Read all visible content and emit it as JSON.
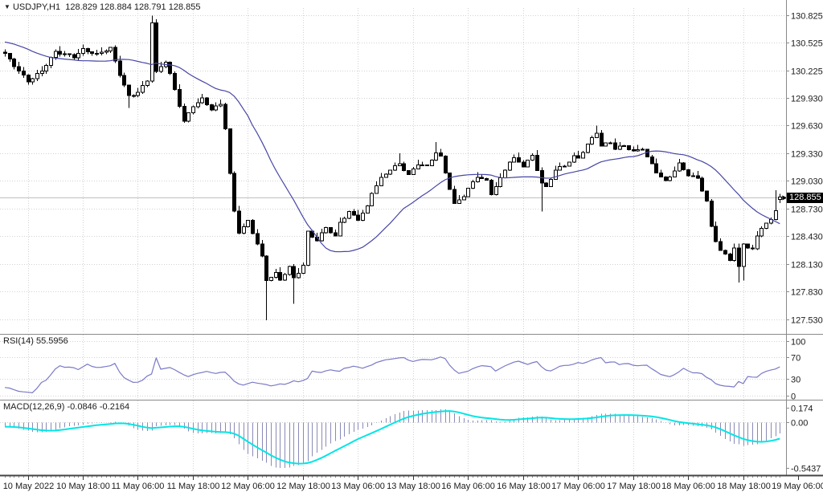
{
  "header": {
    "dropdown_icon": "▼",
    "symbol": "USDJPY,H1",
    "open": "128.829",
    "high": "128.884",
    "low": "128.791",
    "close": "128.855"
  },
  "panels": {
    "rsi": {
      "label": "RSI(14)",
      "value": "55.5956",
      "axis_labels": [
        "100",
        "70",
        "30",
        "0"
      ],
      "dotted_levels": [
        100,
        70,
        30,
        0
      ]
    },
    "macd": {
      "label": "MACD(12,26,9)",
      "value_main": "-0.0846",
      "value_signal": "-0.2164",
      "axis_labels": [
        "0.174",
        "0.00",
        "-0.5437"
      ]
    }
  },
  "price_axis": {
    "labels": [
      "130.825",
      "130.525",
      "130.225",
      "129.930",
      "129.630",
      "129.330",
      "129.030",
      "128.730",
      "128.430",
      "128.130",
      "127.830",
      "127.530"
    ],
    "current": "128.855"
  },
  "chart_data": {
    "type": "candlestick",
    "title": "USDJPY,H1",
    "timeframe_hours": 1,
    "candles_count": 170,
    "x_tick_labels": [
      "10 May 2022",
      "10 May 18:00",
      "11 May 06:00",
      "11 May 18:00",
      "12 May 06:00",
      "12 May 18:00",
      "13 May 06:00",
      "13 May 18:00",
      "16 May 06:00",
      "16 May 18:00",
      "17 May 06:00",
      "17 May 18:00",
      "18 May 06:00",
      "18 May 18:00",
      "19 May 06:00"
    ],
    "x_first_tick_candle": 5,
    "x_ticks_every_candles": 12,
    "y_range": [
      127.38,
      130.9
    ],
    "price_gridlines": [
      130.825,
      130.525,
      130.225,
      129.93,
      129.63,
      129.33,
      129.03,
      128.73,
      128.43,
      128.13,
      127.83,
      127.53
    ],
    "current_price": 128.855,
    "current_bar": {
      "open": 128.829,
      "high": 128.884,
      "low": 128.791,
      "close": 128.855
    },
    "price_anchors": [
      [
        0,
        130.4
      ],
      [
        2,
        130.28
      ],
      [
        5,
        130.12
      ],
      [
        8,
        130.22
      ],
      [
        11,
        130.42
      ],
      [
        15,
        130.38
      ],
      [
        17,
        130.46
      ],
      [
        20,
        130.4
      ],
      [
        23,
        130.46
      ],
      [
        25,
        130.18
      ],
      [
        27,
        129.95
      ],
      [
        29,
        130.0
      ],
      [
        31,
        130.12
      ],
      [
        32,
        130.75
      ],
      [
        33,
        130.2
      ],
      [
        35,
        130.32
      ],
      [
        36,
        130.18
      ],
      [
        38,
        129.85
      ],
      [
        39,
        129.68
      ],
      [
        41,
        129.85
      ],
      [
        43,
        129.92
      ],
      [
        45,
        129.8
      ],
      [
        47,
        129.85
      ],
      [
        48,
        129.6
      ],
      [
        49,
        129.1
      ],
      [
        50,
        128.7
      ],
      [
        51,
        128.48
      ],
      [
        53,
        128.6
      ],
      [
        55,
        128.35
      ],
      [
        56,
        128.2
      ],
      [
        57,
        127.95
      ],
      [
        59,
        128.02
      ],
      [
        60,
        127.95
      ],
      [
        62,
        128.1
      ],
      [
        63,
        127.98
      ],
      [
        65,
        128.12
      ],
      [
        66,
        128.48
      ],
      [
        68,
        128.38
      ],
      [
        70,
        128.52
      ],
      [
        72,
        128.42
      ],
      [
        73,
        128.58
      ],
      [
        75,
        128.7
      ],
      [
        77,
        128.62
      ],
      [
        79,
        128.75
      ],
      [
        80,
        128.9
      ],
      [
        82,
        129.05
      ],
      [
        84,
        129.15
      ],
      [
        86,
        129.22
      ],
      [
        88,
        129.1
      ],
      [
        90,
        129.22
      ],
      [
        92,
        129.18
      ],
      [
        94,
        129.33
      ],
      [
        95,
        129.28
      ],
      [
        97,
        128.95
      ],
      [
        98,
        128.78
      ],
      [
        100,
        128.88
      ],
      [
        101,
        128.95
      ],
      [
        103,
        129.08
      ],
      [
        105,
        129.02
      ],
      [
        106,
        128.88
      ],
      [
        108,
        129.05
      ],
      [
        110,
        129.25
      ],
      [
        111,
        129.28
      ],
      [
        113,
        129.2
      ],
      [
        115,
        129.3
      ],
      [
        117,
        129.0
      ],
      [
        118,
        128.95
      ],
      [
        120,
        129.15
      ],
      [
        122,
        129.2
      ],
      [
        124,
        129.3
      ],
      [
        125,
        129.28
      ],
      [
        127,
        129.42
      ],
      [
        129,
        129.55
      ],
      [
        130,
        129.4
      ],
      [
        132,
        129.45
      ],
      [
        133,
        129.38
      ],
      [
        135,
        129.42
      ],
      [
        137,
        129.35
      ],
      [
        139,
        129.38
      ],
      [
        140,
        129.28
      ],
      [
        142,
        129.12
      ],
      [
        144,
        129.02
      ],
      [
        146,
        129.15
      ],
      [
        147,
        129.22
      ],
      [
        149,
        129.1
      ],
      [
        151,
        129.05
      ],
      [
        153,
        128.8
      ],
      [
        154,
        128.52
      ],
      [
        155,
        128.38
      ],
      [
        156,
        128.28
      ],
      [
        158,
        128.18
      ],
      [
        159,
        128.32
      ],
      [
        160,
        128.1
      ],
      [
        161,
        128.35
      ],
      [
        163,
        128.28
      ],
      [
        164,
        128.42
      ],
      [
        165,
        128.52
      ],
      [
        167,
        128.6
      ],
      [
        168,
        128.72
      ],
      [
        169,
        128.855
      ]
    ],
    "wick_extremes": [
      {
        "i": 27,
        "low": 129.82
      },
      {
        "i": 32,
        "high": 130.82
      },
      {
        "i": 57,
        "low": 127.52
      },
      {
        "i": 63,
        "low": 127.7
      },
      {
        "i": 86,
        "high": 129.33
      },
      {
        "i": 94,
        "high": 129.45
      },
      {
        "i": 117,
        "low": 128.7
      },
      {
        "i": 129,
        "high": 129.63
      },
      {
        "i": 160,
        "low": 127.93
      },
      {
        "i": 161,
        "low": 127.95
      },
      {
        "i": 168,
        "high": 128.93
      }
    ],
    "overlays": [
      {
        "name": "moving-average",
        "type": "SMA",
        "period": 21
      }
    ],
    "rsi": {
      "period": 14,
      "current": 55.5956,
      "range": [
        0,
        100
      ]
    },
    "macd": {
      "fast": 12,
      "slow": 26,
      "signal": 9,
      "current_main": -0.0846,
      "current_signal": -0.2164,
      "axis_max": 0.174,
      "axis_min": -0.5437
    }
  },
  "colors": {
    "background": "#ffffff",
    "grid": "#d2d2d2",
    "border": "#8a8a8a",
    "time_border": "#444444",
    "text": "#1a1a1a",
    "candle_bull_fill": "#ffffff",
    "candle_bear_fill": "#000000",
    "candle_outline": "#000000",
    "ma_line": "#4646a6",
    "current_price_line": "#c0c0c0",
    "current_tag_bg": "#000000",
    "current_tag_text": "#ffffff",
    "rsi_line": "#7a7ac8",
    "macd_histogram": "#8a8ab8",
    "macd_signal": "#00e6e6"
  }
}
